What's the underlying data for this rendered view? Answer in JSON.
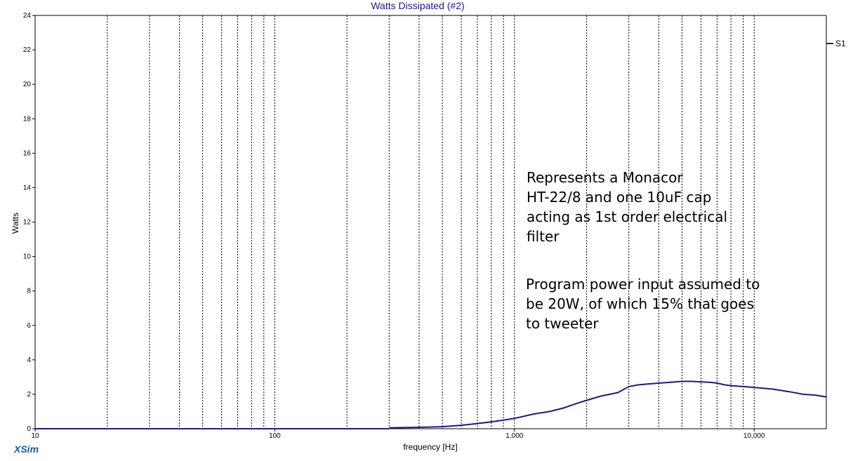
{
  "chart_data": {
    "type": "line",
    "title": "Watts Dissipated (#2)",
    "xlabel": "frequency [Hz]",
    "ylabel": "Watts",
    "x_scale": "log",
    "xlim": [
      10,
      20000
    ],
    "ylim": [
      0,
      24
    ],
    "grid": true,
    "y_ticks": [
      "0",
      "2",
      "4",
      "6",
      "8",
      "10",
      "12",
      "14",
      "16",
      "18",
      "20",
      "22",
      "24"
    ],
    "x_tick_labels": [
      {
        "value": 10,
        "label": "10"
      },
      {
        "value": 100,
        "label": "100"
      },
      {
        "value": 1000,
        "label": "1,000"
      },
      {
        "value": 10000,
        "label": "10,000"
      }
    ],
    "legend_position": "right",
    "series": [
      {
        "name": "S1",
        "color": "#1a1a8c",
        "x": [
          300,
          400,
          500,
          600,
          700,
          800,
          900,
          1000,
          1200,
          1400,
          1600,
          1800,
          2000,
          2300,
          2700,
          3000,
          3300,
          3600,
          4000,
          4500,
          5000,
          5500,
          6000,
          6500,
          7000,
          7500,
          8000,
          9000,
          10000,
          12000,
          14000,
          16000,
          18000,
          20000
        ],
        "values": [
          0.05,
          0.08,
          0.12,
          0.2,
          0.3,
          0.4,
          0.5,
          0.6,
          0.85,
          1.0,
          1.2,
          1.45,
          1.65,
          1.9,
          2.1,
          2.45,
          2.55,
          2.6,
          2.65,
          2.7,
          2.75,
          2.75,
          2.72,
          2.7,
          2.65,
          2.55,
          2.5,
          2.45,
          2.4,
          2.3,
          2.15,
          2.0,
          1.95,
          1.85
        ]
      }
    ]
  },
  "annotation_1": "Represents a Monacor\nHT-22/8 and one 10uF cap\nacting as 1st order electrical\nfilter",
  "annotation_2": "Program power input assumed to\nbe 20W, of which 15% that goes\nto tweeter",
  "brand": {
    "label": "XSim",
    "color": "#1a5aa0"
  },
  "colors": {
    "title": "#1a1a8c",
    "grid": "#000000",
    "axis": "#000000"
  }
}
